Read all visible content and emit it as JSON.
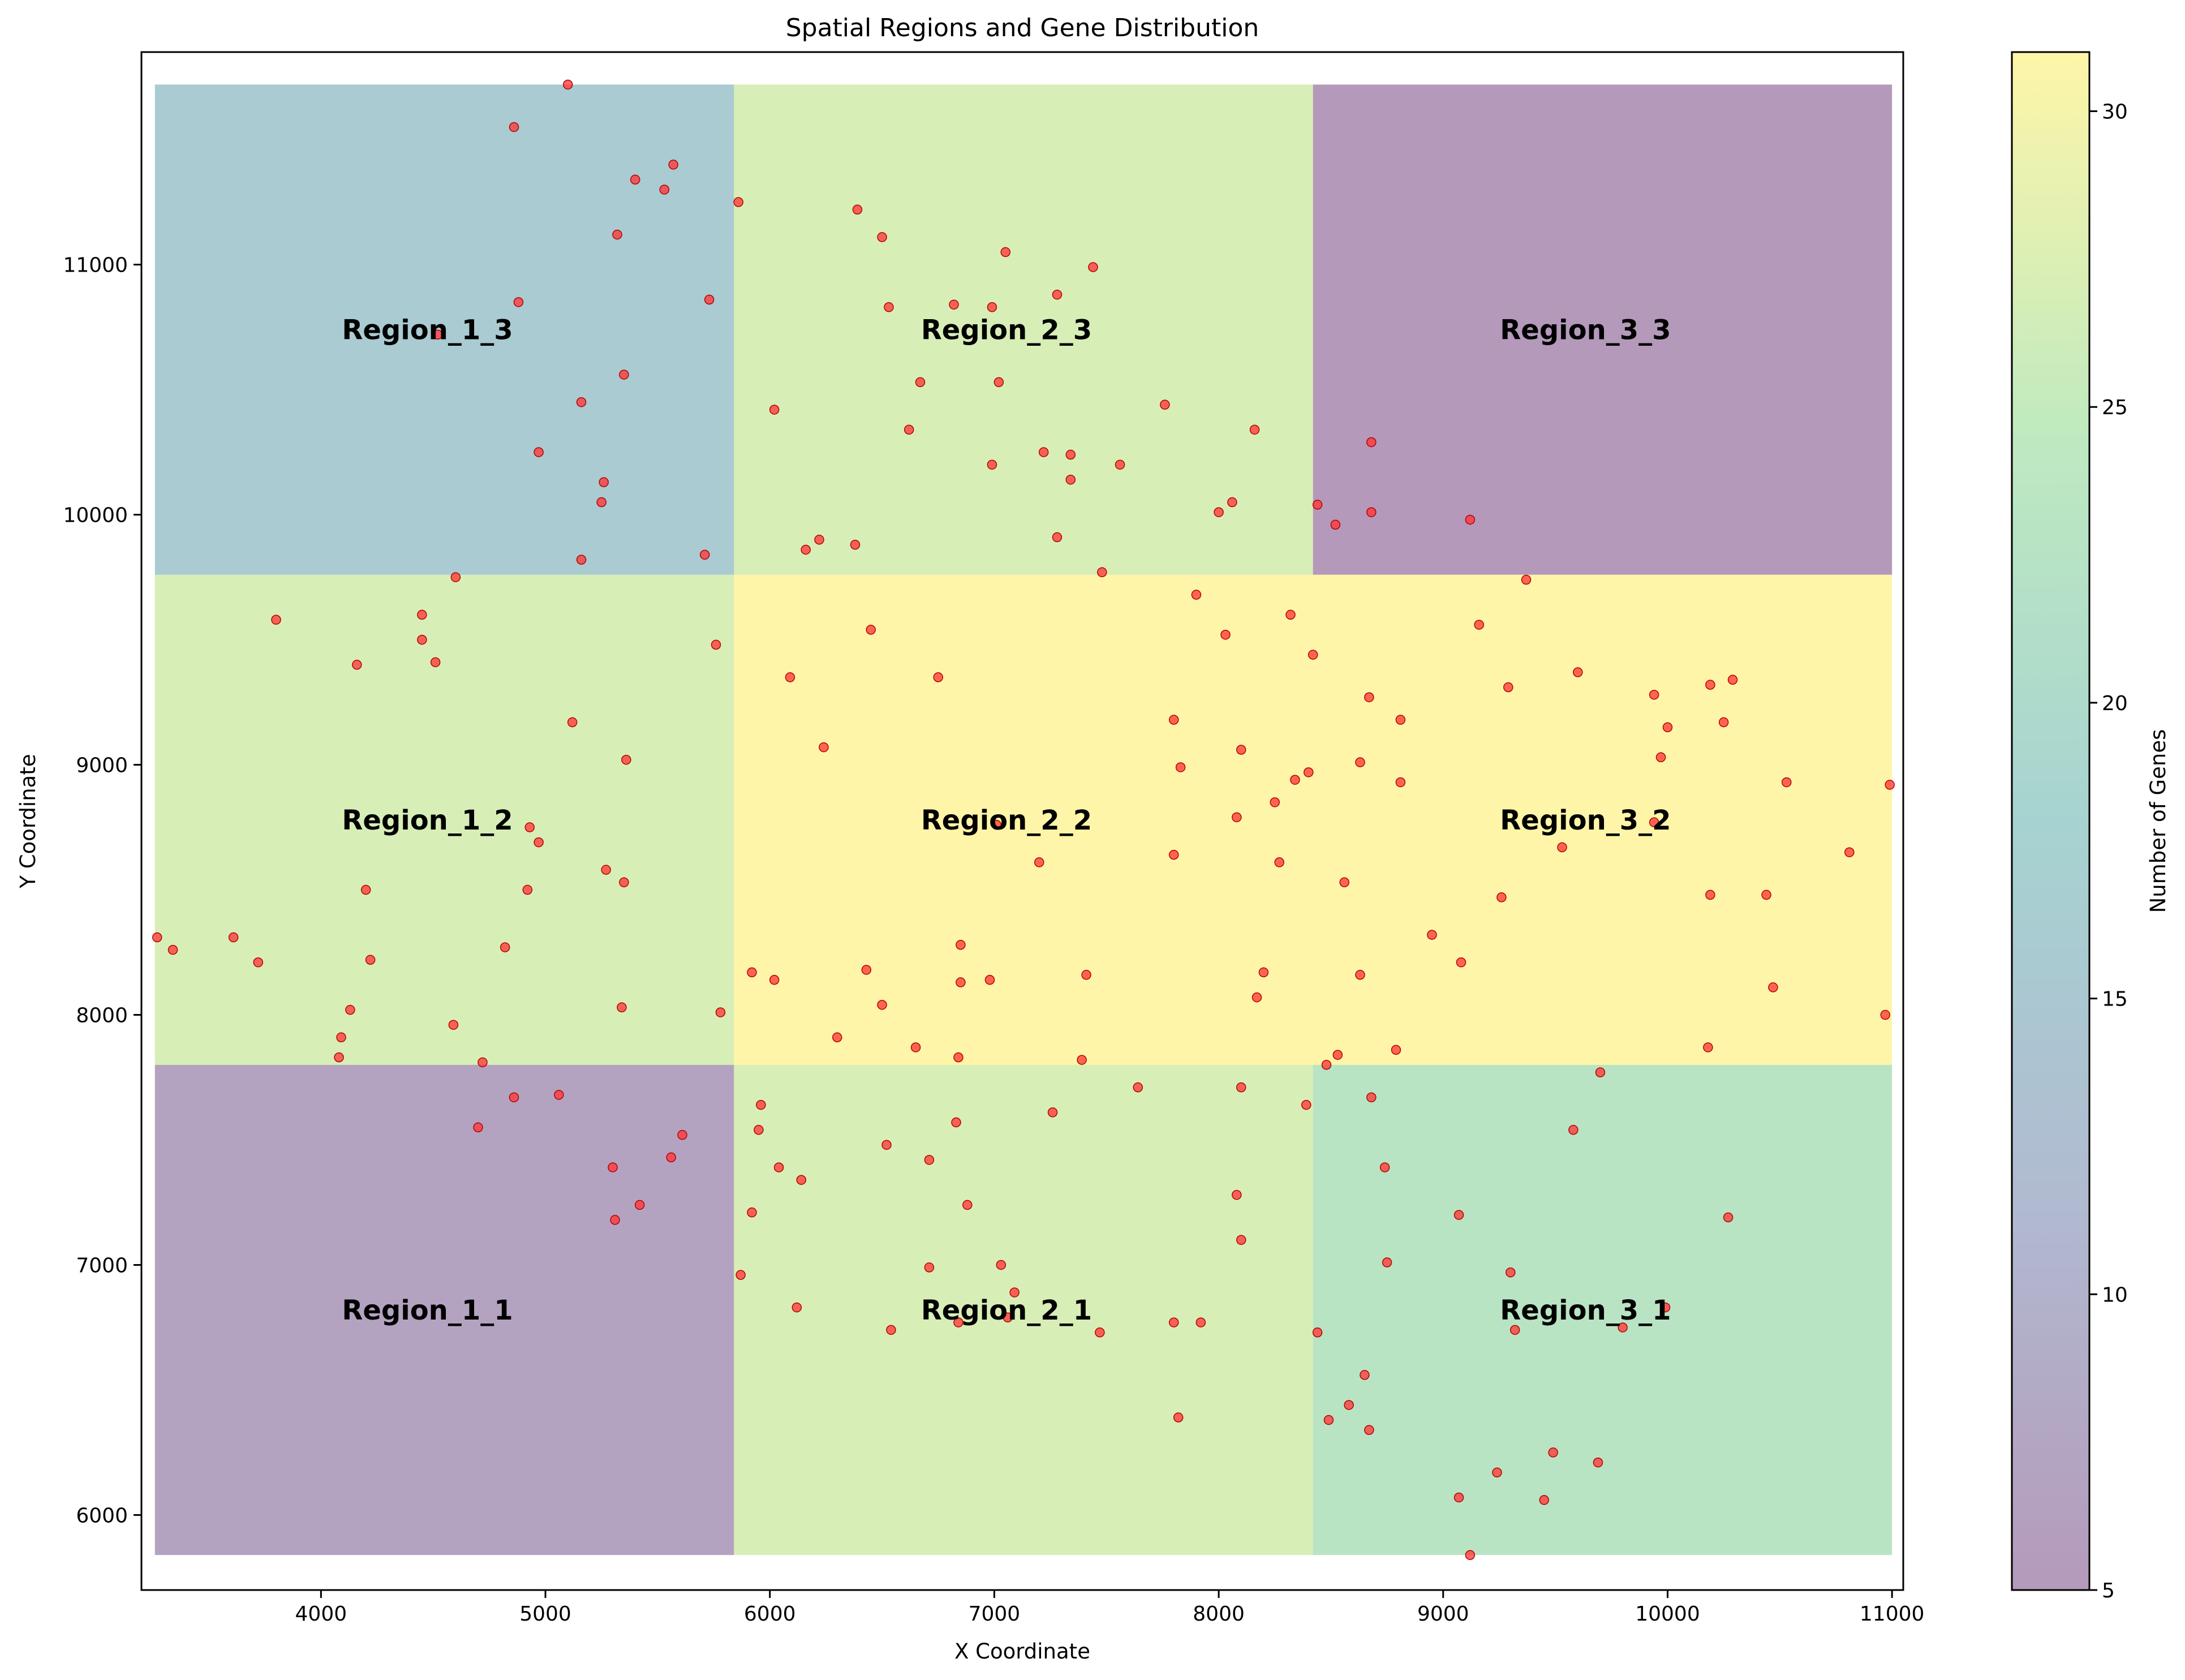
{
  "chart_data": {
    "type": "heatmap",
    "title": "Spatial Regions and Gene Distribution",
    "xlabel": "X Coordinate",
    "ylabel": "Y Coordinate",
    "xlim": [
      3200,
      11050
    ],
    "ylim": [
      5700,
      11850
    ],
    "x_ticks": [
      4000,
      5000,
      6000,
      7000,
      8000,
      9000,
      10000,
      11000
    ],
    "y_ticks": [
      6000,
      7000,
      8000,
      9000,
      10000,
      11000
    ],
    "grid": false,
    "colorbar": {
      "label": "Number of Genes",
      "min": 5,
      "max": 31,
      "ticks": [
        5,
        10,
        15,
        20,
        25,
        30
      ],
      "colormap": "viridis",
      "alpha": 0.4
    },
    "regions": [
      {
        "name": "Region_1_1",
        "x0": 3260,
        "x1": 5840,
        "y0": 5840,
        "y1": 7800,
        "genes": 7
      },
      {
        "name": "Region_1_2",
        "x0": 3260,
        "x1": 5840,
        "y0": 7800,
        "y1": 9760,
        "genes": 27
      },
      {
        "name": "Region_1_3",
        "x0": 3260,
        "x1": 5840,
        "y0": 9760,
        "y1": 11720,
        "genes": 16
      },
      {
        "name": "Region_2_1",
        "x0": 5840,
        "x1": 8420,
        "y0": 5840,
        "y1": 7800,
        "genes": 27
      },
      {
        "name": "Region_2_2",
        "x0": 5840,
        "x1": 8420,
        "y0": 7800,
        "y1": 9760,
        "genes": 31
      },
      {
        "name": "Region_2_3",
        "x0": 5840,
        "x1": 8420,
        "y0": 9760,
        "y1": 11720,
        "genes": 27
      },
      {
        "name": "Region_3_1",
        "x0": 8420,
        "x1": 11000,
        "y0": 5840,
        "y1": 7800,
        "genes": 23
      },
      {
        "name": "Region_3_2",
        "x0": 8420,
        "x1": 11000,
        "y0": 7800,
        "y1": 9760,
        "genes": 31
      },
      {
        "name": "Region_3_3",
        "x0": 8420,
        "x1": 11000,
        "y0": 9760,
        "y1": 11720,
        "genes": 5
      }
    ],
    "points_color": "#ff3333",
    "points": [
      [
        5100,
        11720
      ],
      [
        4860,
        11550
      ],
      [
        5570,
        11400
      ],
      [
        5400,
        11340
      ],
      [
        5530,
        11300
      ],
      [
        5320,
        11120
      ],
      [
        4880,
        10850
      ],
      [
        5730,
        10860
      ],
      [
        4520,
        10720
      ],
      [
        5350,
        10560
      ],
      [
        5160,
        10450
      ],
      [
        4970,
        10250
      ],
      [
        5260,
        10130
      ],
      [
        5250,
        10050
      ],
      [
        5160,
        9820
      ],
      [
        5710,
        9840
      ],
      [
        4600,
        9750
      ],
      [
        5860,
        11250
      ],
      [
        6390,
        11220
      ],
      [
        6500,
        11110
      ],
      [
        7050,
        11050
      ],
      [
        7440,
        10990
      ],
      [
        7280,
        10880
      ],
      [
        6820,
        10840
      ],
      [
        6990,
        10830
      ],
      [
        6530,
        10830
      ],
      [
        6670,
        10530
      ],
      [
        7020,
        10530
      ],
      [
        6020,
        10420
      ],
      [
        6620,
        10340
      ],
      [
        7760,
        10440
      ],
      [
        8160,
        10340
      ],
      [
        7220,
        10250
      ],
      [
        7340,
        10240
      ],
      [
        7560,
        10200
      ],
      [
        6990,
        10200
      ],
      [
        7340,
        10140
      ],
      [
        8060,
        10050
      ],
      [
        8000,
        10010
      ],
      [
        7280,
        9910
      ],
      [
        6220,
        9900
      ],
      [
        6380,
        9880
      ],
      [
        6160,
        9860
      ],
      [
        8440,
        10040
      ],
      [
        8520,
        9960
      ],
      [
        8680,
        10290
      ],
      [
        8680,
        10010
      ],
      [
        9120,
        9980
      ],
      [
        3800,
        9580
      ],
      [
        4450,
        9600
      ],
      [
        4450,
        9500
      ],
      [
        4160,
        9400
      ],
      [
        4510,
        9410
      ],
      [
        5760,
        9480
      ],
      [
        5120,
        9170
      ],
      [
        5360,
        9020
      ],
      [
        4970,
        8690
      ],
      [
        4930,
        8750
      ],
      [
        4200,
        8500
      ],
      [
        4920,
        8500
      ],
      [
        5270,
        8580
      ],
      [
        5350,
        8530
      ],
      [
        4820,
        8270
      ],
      [
        4220,
        8220
      ],
      [
        3270,
        8310
      ],
      [
        3340,
        8260
      ],
      [
        3610,
        8310
      ],
      [
        3720,
        8210
      ],
      [
        4130,
        8020
      ],
      [
        5340,
        8030
      ],
      [
        5780,
        8010
      ],
      [
        4590,
        7960
      ],
      [
        4090,
        7910
      ],
      [
        4080,
        7830
      ],
      [
        4720,
        7810
      ],
      [
        6450,
        9540
      ],
      [
        6090,
        9350
      ],
      [
        6750,
        9350
      ],
      [
        7800,
        9180
      ],
      [
        6240,
        9070
      ],
      [
        7830,
        8990
      ],
      [
        8100,
        9060
      ],
      [
        8080,
        8790
      ],
      [
        7010,
        8760
      ],
      [
        7200,
        8610
      ],
      [
        7800,
        8640
      ],
      [
        6850,
        8280
      ],
      [
        6430,
        8180
      ],
      [
        5920,
        8170
      ],
      [
        6020,
        8140
      ],
      [
        6850,
        8130
      ],
      [
        6980,
        8140
      ],
      [
        7410,
        8160
      ],
      [
        6500,
        8040
      ],
      [
        6300,
        7910
      ],
      [
        6650,
        7870
      ],
      [
        7390,
        7820
      ],
      [
        6840,
        7830
      ],
      [
        7480,
        9770
      ],
      [
        7900,
        9680
      ],
      [
        8030,
        9520
      ],
      [
        8320,
        9600
      ],
      [
        8340,
        8940
      ],
      [
        8250,
        8850
      ],
      [
        8270,
        8610
      ],
      [
        8200,
        8170
      ],
      [
        8170,
        8070
      ],
      [
        8420,
        9440
      ],
      [
        9160,
        9560
      ],
      [
        9370,
        9740
      ],
      [
        9290,
        9310
      ],
      [
        9600,
        9370
      ],
      [
        8670,
        9270
      ],
      [
        8810,
        9180
      ],
      [
        9940,
        9280
      ],
      [
        10190,
        9320
      ],
      [
        10290,
        9340
      ],
      [
        10250,
        9170
      ],
      [
        10000,
        9150
      ],
      [
        9970,
        9030
      ],
      [
        8630,
        9010
      ],
      [
        8810,
        8930
      ],
      [
        8400,
        8970
      ],
      [
        9940,
        8770
      ],
      [
        10530,
        8930
      ],
      [
        9530,
        8670
      ],
      [
        8560,
        8530
      ],
      [
        9260,
        8470
      ],
      [
        10190,
        8480
      ],
      [
        10440,
        8480
      ],
      [
        10810,
        8650
      ],
      [
        10990,
        8920
      ],
      [
        8950,
        8320
      ],
      [
        9080,
        8210
      ],
      [
        8630,
        8160
      ],
      [
        10470,
        8110
      ],
      [
        10970,
        8000
      ],
      [
        10180,
        7870
      ],
      [
        8790,
        7860
      ],
      [
        8530,
        7840
      ],
      [
        8480,
        7800
      ],
      [
        4860,
        7670
      ],
      [
        5060,
        7680
      ],
      [
        4700,
        7550
      ],
      [
        5610,
        7520
      ],
      [
        5560,
        7430
      ],
      [
        5300,
        7390
      ],
      [
        5420,
        7240
      ],
      [
        5310,
        7180
      ],
      [
        5960,
        7640
      ],
      [
        6830,
        7570
      ],
      [
        7260,
        7610
      ],
      [
        7640,
        7710
      ],
      [
        8100,
        7710
      ],
      [
        5950,
        7540
      ],
      [
        6520,
        7480
      ],
      [
        6710,
        7420
      ],
      [
        6040,
        7390
      ],
      [
        6140,
        7340
      ],
      [
        8080,
        7280
      ],
      [
        6880,
        7240
      ],
      [
        5920,
        7210
      ],
      [
        8100,
        7100
      ],
      [
        7030,
        7000
      ],
      [
        6710,
        6990
      ],
      [
        5870,
        6960
      ],
      [
        7090,
        6890
      ],
      [
        6120,
        6830
      ],
      [
        7060,
        6790
      ],
      [
        6840,
        6770
      ],
      [
        7800,
        6770
      ],
      [
        7920,
        6770
      ],
      [
        6540,
        6740
      ],
      [
        7470,
        6730
      ],
      [
        7820,
        6390
      ],
      [
        8390,
        7640
      ],
      [
        8680,
        7670
      ],
      [
        9700,
        7770
      ],
      [
        9580,
        7540
      ],
      [
        8740,
        7390
      ],
      [
        9070,
        7200
      ],
      [
        10270,
        7190
      ],
      [
        8750,
        7010
      ],
      [
        9300,
        6970
      ],
      [
        9990,
        6830
      ],
      [
        9800,
        6750
      ],
      [
        9320,
        6740
      ],
      [
        8440,
        6730
      ],
      [
        8650,
        6560
      ],
      [
        8580,
        6440
      ],
      [
        8490,
        6380
      ],
      [
        8670,
        6340
      ],
      [
        9490,
        6250
      ],
      [
        9690,
        6210
      ],
      [
        9240,
        6170
      ],
      [
        9070,
        6070
      ],
      [
        9450,
        6060
      ],
      [
        9120,
        5840
      ]
    ]
  }
}
